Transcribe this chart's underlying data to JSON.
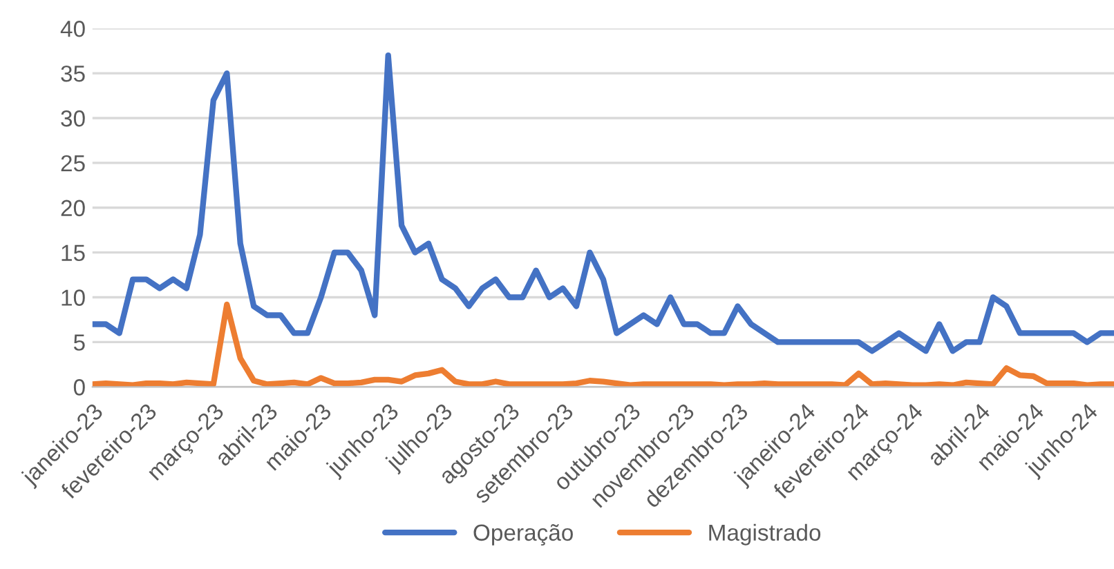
{
  "chart_data": {
    "type": "line",
    "categories": [
      "janeiro-23",
      null,
      null,
      null,
      "fevereiro-23",
      null,
      null,
      null,
      null,
      "março-23",
      null,
      null,
      null,
      "abril-23",
      null,
      null,
      null,
      "maio-23",
      null,
      null,
      null,
      null,
      "junho-23",
      null,
      null,
      null,
      "julho-23",
      null,
      null,
      null,
      null,
      "agosto-23",
      null,
      null,
      null,
      "setembro-23",
      null,
      null,
      null,
      null,
      "outubro-23",
      null,
      null,
      null,
      "novembro-23",
      null,
      null,
      null,
      "dezembro-23",
      null,
      null,
      null,
      null,
      "janeiro-24",
      null,
      null,
      null,
      "fevereiro-24",
      null,
      null,
      null,
      "março-24",
      null,
      null,
      null,
      null,
      "abril-24",
      null,
      null,
      null,
      "maio-24",
      null,
      null,
      null,
      "junho-24",
      null,
      null
    ],
    "series": [
      {
        "name": "Operação",
        "color": "#4472c4",
        "values": [
          7,
          7,
          6,
          12,
          12,
          11,
          12,
          11,
          17,
          32,
          35,
          16,
          9,
          8,
          8,
          6,
          6,
          10,
          15,
          15,
          13,
          8,
          37,
          18,
          15,
          16,
          12,
          11,
          9,
          11,
          12,
          10,
          10,
          13,
          10,
          11,
          9,
          15,
          12,
          6,
          7,
          8,
          7,
          10,
          7,
          7,
          6,
          6,
          9,
          7,
          6,
          5,
          5,
          5,
          5,
          5,
          5,
          5,
          4,
          5,
          6,
          5,
          4,
          7,
          4,
          5,
          5,
          10,
          9,
          6,
          6,
          6,
          6,
          6,
          5,
          6,
          6
        ]
      },
      {
        "name": "Magistrado",
        "color": "#ed7d31",
        "values": [
          0.3,
          0.4,
          0.3,
          0.2,
          0.4,
          0.4,
          0.3,
          0.5,
          0.4,
          0.3,
          9.2,
          3.2,
          0.7,
          0.3,
          0.4,
          0.5,
          0.3,
          1.0,
          0.4,
          0.4,
          0.5,
          0.8,
          0.8,
          0.6,
          1.3,
          1.5,
          1.9,
          0.6,
          0.3,
          0.3,
          0.6,
          0.3,
          0.3,
          0.3,
          0.3,
          0.3,
          0.4,
          0.7,
          0.6,
          0.4,
          0.2,
          0.3,
          0.3,
          0.3,
          0.3,
          0.3,
          0.3,
          0.2,
          0.3,
          0.3,
          0.4,
          0.3,
          0.3,
          0.3,
          0.3,
          0.3,
          0.2,
          1.5,
          0.3,
          0.4,
          0.3,
          0.2,
          0.2,
          0.3,
          0.2,
          0.5,
          0.4,
          0.3,
          2.1,
          1.3,
          1.2,
          0.4,
          0.4,
          0.4,
          0.2,
          0.3,
          0.3
        ]
      }
    ],
    "ylim": [
      0,
      40
    ],
    "yticks": [
      0,
      5,
      10,
      15,
      20,
      25,
      30,
      35,
      40
    ],
    "grid": "y",
    "legend": "bottom",
    "line_style": "solid",
    "marker": "none"
  }
}
